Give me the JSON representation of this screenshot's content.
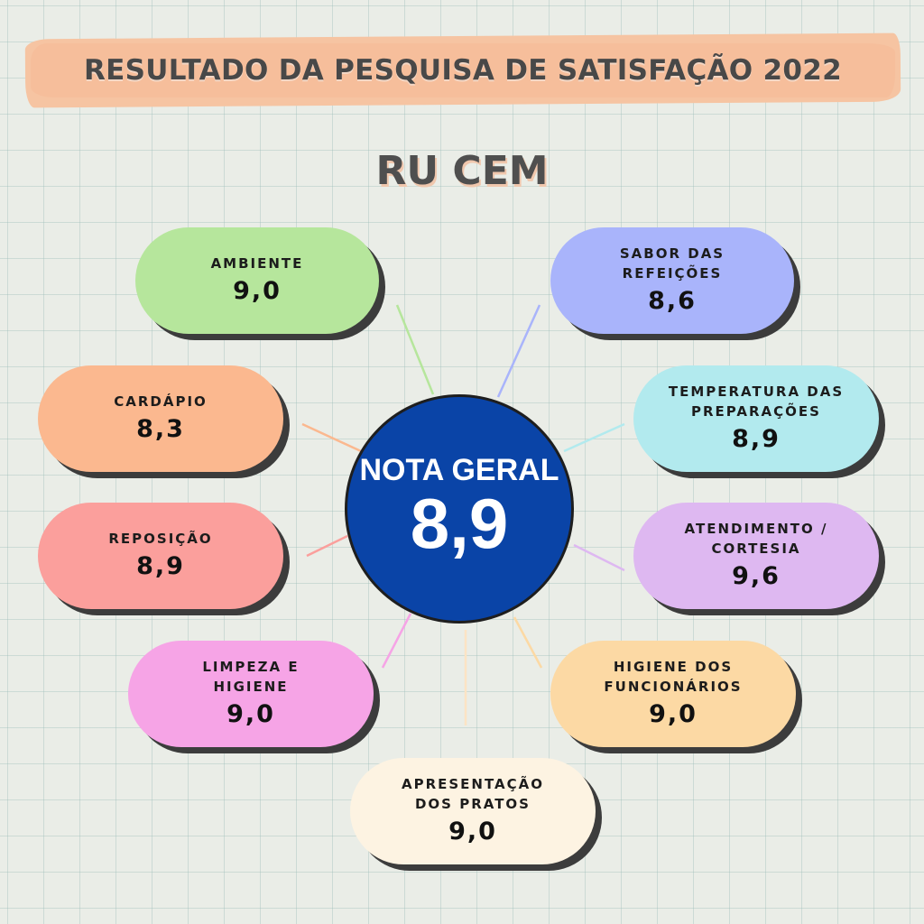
{
  "header": {
    "title": "RESULTADO DA PESQUISA DE SATISFAÇÃO 2022",
    "subtitle": "RU CEM"
  },
  "center": {
    "label": "NOTA GERAL",
    "value": "8,9",
    "color": "#0a44a7"
  },
  "categories": [
    {
      "label": "AMBIENTE",
      "value": "9,0",
      "color": "#b6e69c"
    },
    {
      "label": "SABOR DAS REFEIÇÕES",
      "value": "8,6",
      "color": "#a9b4fb"
    },
    {
      "label": "CARDÁPIO",
      "value": "8,3",
      "color": "#fbb88f"
    },
    {
      "label": "TEMPERATURA DAS\nPREPARAÇÕES",
      "value": "8,9",
      "color": "#b2eaee"
    },
    {
      "label": "REPOSIÇÃO",
      "value": "8,9",
      "color": "#fb9f9c"
    },
    {
      "label": "ATENDIMENTO /\nCORTESIA",
      "value": "9,6",
      "color": "#deb8f1"
    },
    {
      "label": "LIMPEZA E\nHIGIENE",
      "value": "9,0",
      "color": "#f6a4e6"
    },
    {
      "label": "HIGIENE DOS\nFUNCIONÁRIOS",
      "value": "9,0",
      "color": "#fcd9a4"
    },
    {
      "label": "APRESENTAÇÃO\nDOS PRATOS",
      "value": "9,0",
      "color": "#fdf3e2"
    }
  ]
}
